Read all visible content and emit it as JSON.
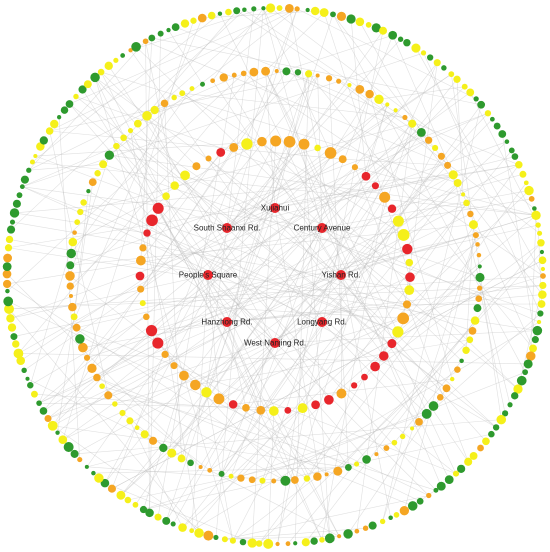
{
  "nodes": [
    {
      "label": "Xujiahui"
    },
    {
      "label": "South Shaanxi Rd."
    },
    {
      "label": "Century Avenue"
    },
    {
      "label": "People's Square"
    },
    {
      "label": "Yishan Rd."
    },
    {
      "label": "Hanzhong Rd."
    },
    {
      "label": "Longyang Rd."
    },
    {
      "label": "West Nanjing Rd."
    }
  ]
}
